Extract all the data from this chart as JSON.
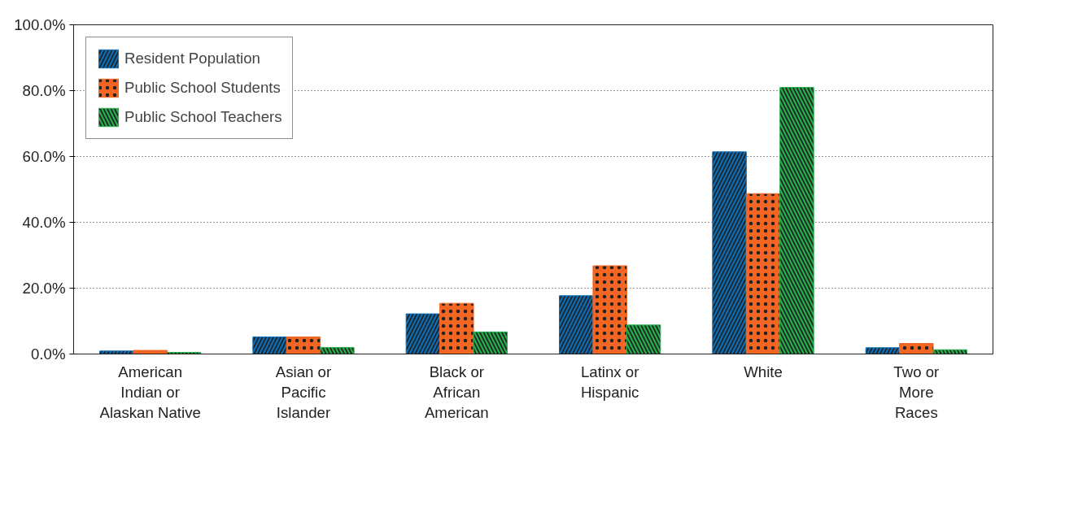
{
  "chart_data": {
    "type": "bar",
    "categories": [
      "American\nIndian or\nAlaskan Native",
      "Asian or\nPacific\nIslander",
      "Black or\nAfrican\nAmerican",
      "Latinx or\nHispanic",
      "White",
      "Two or\nMore\nRaces"
    ],
    "series": [
      {
        "name": "Resident Population",
        "color": "#0a6fba",
        "values": [
          0.9,
          5.2,
          12.2,
          17.7,
          61.4,
          1.9
        ]
      },
      {
        "name": "Public School Students",
        "color": "#f26522",
        "values": [
          1.1,
          5.2,
          15.4,
          26.8,
          48.7,
          3.2
        ]
      },
      {
        "name": "Public School Teachers",
        "color": "#23b04b",
        "values": [
          0.5,
          2.0,
          6.7,
          8.8,
          81.0,
          1.3
        ]
      }
    ],
    "ylim": [
      0,
      100
    ],
    "yticks": [
      {
        "value": 0,
        "label": "0.0%"
      },
      {
        "value": 20,
        "label": "20.0%"
      },
      {
        "value": 40,
        "label": "40.0%"
      },
      {
        "value": 60,
        "label": "60.0%"
      },
      {
        "value": 80,
        "label": "80.0%"
      },
      {
        "value": 100,
        "label": "100.0%"
      }
    ],
    "grid": "y",
    "legend": "top left"
  }
}
